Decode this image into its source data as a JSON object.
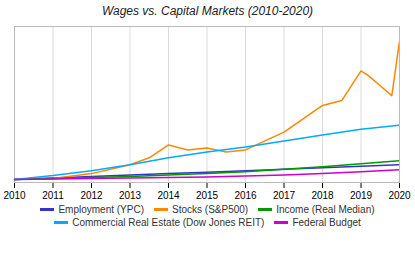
{
  "chart_data": {
    "type": "line",
    "title": "Wages vs. Capital Markets (2010-2020)",
    "series": [
      {
        "name": "Employment (YPC)",
        "color": "#3333cc",
        "x": [
          2010,
          2011,
          2012,
          2013,
          2014,
          2015,
          2016,
          2017,
          2018,
          2019,
          2020
        ],
        "values": [
          100,
          101.5,
          103,
          104.5,
          106,
          107.5,
          109,
          110.5,
          112,
          113.5,
          115
        ]
      },
      {
        "name": "Stocks (S&P500)",
        "color": "#ff8800",
        "x": [
          2010,
          2011,
          2012,
          2013,
          2013.5,
          2014,
          2014.5,
          2015,
          2015.5,
          2016,
          2017,
          2018,
          2018.5,
          2019,
          2019.2,
          2019.5,
          2019.8,
          2020
        ],
        "values": [
          100,
          101,
          106,
          115,
          122,
          135,
          130,
          132,
          128,
          130,
          148,
          175,
          180,
          210,
          205,
          195,
          185,
          240
        ]
      },
      {
        "name": "Income (Real Median)",
        "color": "#009900",
        "x": [
          2010,
          2011,
          2012,
          2013,
          2014,
          2015,
          2016,
          2017,
          2018,
          2019,
          2020
        ],
        "values": [
          100,
          101,
          102,
          103,
          104.5,
          106,
          108,
          110.5,
          113,
          116,
          119
        ]
      },
      {
        "name": "Commercial Real Estate (Dow Jones REIT)",
        "color": "#00aaff",
        "x": [
          2010,
          2011,
          2012,
          2013,
          2014,
          2015,
          2016,
          2017,
          2018,
          2019,
          2020
        ],
        "values": [
          100,
          104,
          109,
          115,
          122,
          128,
          133,
          139,
          145,
          151,
          155
        ]
      },
      {
        "name": "Federal Budget",
        "color": "#cc00cc",
        "x": [
          2010,
          2011,
          2012,
          2013,
          2014,
          2015,
          2016,
          2017,
          2018,
          2019,
          2020
        ],
        "values": [
          100,
          100.5,
          101,
          101.5,
          102,
          102.5,
          103.5,
          104.5,
          106,
          108,
          110
        ]
      }
    ],
    "xlim": [
      2010,
      2020
    ],
    "xticks": [
      2010,
      2011,
      2012,
      2013,
      2014,
      2015,
      2016,
      2017,
      2018,
      2019,
      2020
    ],
    "ylim": [
      97,
      255
    ],
    "yticks": [],
    "grid": true,
    "tick_labels": "x",
    "legend": "bottom"
  }
}
